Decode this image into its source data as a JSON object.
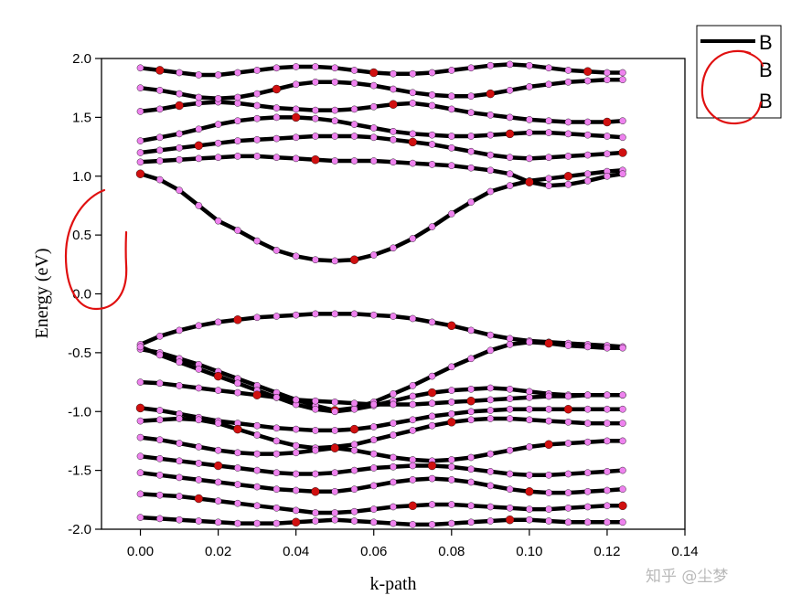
{
  "chart_data": {
    "type": "line",
    "xlabel": "k-path",
    "ylabel": "Energy (eV)",
    "xlim": [
      -0.01,
      0.14
    ],
    "ylim": [
      -2.0,
      2.0
    ],
    "x_ticks": [
      "0.00",
      "0.02",
      "0.04",
      "0.06",
      "0.08",
      "0.10",
      "0.12",
      "0.14"
    ],
    "y_ticks": [
      "2.0",
      "1.5",
      "1.0",
      "0.5",
      "0.0",
      "-0.5",
      "-1.0",
      "-1.5",
      "-2.0"
    ],
    "grid": false,
    "legend_position": "outside-top-right",
    "legend_entries": [
      "B",
      "B",
      "B"
    ],
    "series": [
      {
        "x": [
          0.0,
          0.005,
          0.01,
          0.015,
          0.02,
          0.025,
          0.03,
          0.035,
          0.04,
          0.045,
          0.05,
          0.055,
          0.06,
          0.065,
          0.07,
          0.075,
          0.08,
          0.085,
          0.09,
          0.095,
          0.1,
          0.105,
          0.11,
          0.115,
          0.12,
          0.124
        ],
        "y": [
          1.02,
          0.97,
          0.88,
          0.75,
          0.62,
          0.54,
          0.45,
          0.37,
          0.32,
          0.29,
          0.28,
          0.29,
          0.33,
          0.39,
          0.47,
          0.57,
          0.68,
          0.78,
          0.87,
          0.92,
          0.96,
          0.98,
          1.0,
          1.02,
          1.04,
          1.05
        ]
      },
      {
        "x": [
          0.0,
          0.005,
          0.01,
          0.015,
          0.02,
          0.025,
          0.03,
          0.035,
          0.04,
          0.045,
          0.05,
          0.055,
          0.06,
          0.065,
          0.07,
          0.075,
          0.08,
          0.085,
          0.09,
          0.095,
          0.1,
          0.105,
          0.11,
          0.115,
          0.12,
          0.124
        ],
        "y": [
          -0.43,
          -0.36,
          -0.31,
          -0.27,
          -0.24,
          -0.22,
          -0.2,
          -0.19,
          -0.18,
          -0.17,
          -0.17,
          -0.17,
          -0.18,
          -0.19,
          -0.21,
          -0.24,
          -0.27,
          -0.31,
          -0.35,
          -0.38,
          -0.4,
          -0.41,
          -0.42,
          -0.43,
          -0.44,
          -0.45
        ]
      },
      {
        "x": [
          0.0,
          0.005,
          0.01,
          0.015,
          0.02,
          0.025,
          0.03,
          0.035,
          0.04,
          0.045,
          0.05,
          0.055,
          0.06,
          0.065,
          0.07,
          0.075,
          0.08,
          0.085,
          0.09,
          0.095,
          0.1,
          0.105,
          0.11,
          0.115,
          0.12,
          0.124
        ],
        "y": [
          -0.47,
          -0.5,
          -0.55,
          -0.6,
          -0.66,
          -0.72,
          -0.78,
          -0.84,
          -0.9,
          -0.95,
          -0.99,
          -0.97,
          -0.92,
          -0.85,
          -0.78,
          -0.7,
          -0.62,
          -0.55,
          -0.48,
          -0.43,
          -0.41,
          -0.42,
          -0.44,
          -0.45,
          -0.46,
          -0.46
        ]
      },
      {
        "x": [
          0.0,
          0.005,
          0.01,
          0.015,
          0.02,
          0.025,
          0.03,
          0.035,
          0.04,
          0.045,
          0.05,
          0.055,
          0.06,
          0.065,
          0.07,
          0.075,
          0.08,
          0.085,
          0.09,
          0.095,
          0.1,
          0.105,
          0.11,
          0.115,
          0.12,
          0.124
        ],
        "y": [
          -0.45,
          -0.52,
          -0.58,
          -0.64,
          -0.7,
          -0.76,
          -0.82,
          -0.88,
          -0.94,
          -0.98,
          -1.0,
          -0.98,
          -0.95,
          -0.91,
          -0.87,
          -0.84,
          -0.82,
          -0.81,
          -0.8,
          -0.81,
          -0.83,
          -0.85,
          -0.86,
          -0.86,
          -0.86,
          -0.86
        ]
      },
      {
        "x": [
          0.0,
          0.005,
          0.01,
          0.015,
          0.02,
          0.025,
          0.03,
          0.035,
          0.04,
          0.045,
          0.05,
          0.055,
          0.06,
          0.065,
          0.07,
          0.075,
          0.08,
          0.085,
          0.09,
          0.095,
          0.1,
          0.105,
          0.11,
          0.115,
          0.12,
          0.124
        ],
        "y": [
          1.12,
          1.13,
          1.14,
          1.15,
          1.16,
          1.17,
          1.17,
          1.16,
          1.15,
          1.14,
          1.13,
          1.13,
          1.13,
          1.12,
          1.11,
          1.1,
          1.09,
          1.07,
          1.05,
          1.02,
          0.95,
          0.92,
          0.93,
          0.96,
          1.0,
          1.02
        ]
      },
      {
        "x": [
          0.0,
          0.005,
          0.01,
          0.015,
          0.02,
          0.025,
          0.03,
          0.035,
          0.04,
          0.045,
          0.05,
          0.055,
          0.06,
          0.065,
          0.07,
          0.075,
          0.08,
          0.085,
          0.09,
          0.095,
          0.1,
          0.105,
          0.11,
          0.115,
          0.12,
          0.124
        ],
        "y": [
          1.2,
          1.22,
          1.24,
          1.26,
          1.28,
          1.3,
          1.31,
          1.32,
          1.33,
          1.34,
          1.34,
          1.34,
          1.33,
          1.31,
          1.29,
          1.27,
          1.24,
          1.21,
          1.18,
          1.16,
          1.15,
          1.16,
          1.17,
          1.18,
          1.19,
          1.2
        ]
      },
      {
        "x": [
          0.0,
          0.005,
          0.01,
          0.015,
          0.02,
          0.025,
          0.03,
          0.035,
          0.04,
          0.045,
          0.05,
          0.055,
          0.06,
          0.065,
          0.07,
          0.075,
          0.08,
          0.085,
          0.09,
          0.095,
          0.1,
          0.105,
          0.11,
          0.115,
          0.12,
          0.124
        ],
        "y": [
          1.3,
          1.33,
          1.36,
          1.4,
          1.44,
          1.47,
          1.49,
          1.5,
          1.5,
          1.49,
          1.47,
          1.44,
          1.41,
          1.38,
          1.36,
          1.35,
          1.34,
          1.34,
          1.35,
          1.36,
          1.37,
          1.37,
          1.36,
          1.35,
          1.34,
          1.33
        ]
      },
      {
        "x": [
          0.0,
          0.005,
          0.01,
          0.015,
          0.02,
          0.025,
          0.03,
          0.035,
          0.04,
          0.045,
          0.05,
          0.055,
          0.06,
          0.065,
          0.07,
          0.075,
          0.08,
          0.085,
          0.09,
          0.095,
          0.1,
          0.105,
          0.11,
          0.115,
          0.12,
          0.124
        ],
        "y": [
          1.55,
          1.57,
          1.6,
          1.62,
          1.63,
          1.62,
          1.6,
          1.58,
          1.57,
          1.56,
          1.56,
          1.57,
          1.59,
          1.61,
          1.62,
          1.6,
          1.57,
          1.54,
          1.52,
          1.5,
          1.48,
          1.47,
          1.46,
          1.46,
          1.46,
          1.47
        ]
      },
      {
        "x": [
          0.0,
          0.005,
          0.01,
          0.015,
          0.02,
          0.025,
          0.03,
          0.035,
          0.04,
          0.045,
          0.05,
          0.055,
          0.06,
          0.065,
          0.07,
          0.075,
          0.08,
          0.085,
          0.09,
          0.095,
          0.1,
          0.105,
          0.11,
          0.115,
          0.12,
          0.124
        ],
        "y": [
          1.75,
          1.73,
          1.7,
          1.67,
          1.66,
          1.67,
          1.7,
          1.74,
          1.78,
          1.8,
          1.8,
          1.79,
          1.77,
          1.74,
          1.71,
          1.69,
          1.68,
          1.68,
          1.7,
          1.73,
          1.76,
          1.78,
          1.8,
          1.81,
          1.82,
          1.82
        ]
      },
      {
        "x": [
          0.0,
          0.005,
          0.01,
          0.015,
          0.02,
          0.025,
          0.03,
          0.035,
          0.04,
          0.045,
          0.05,
          0.055,
          0.06,
          0.065,
          0.07,
          0.075,
          0.08,
          0.085,
          0.09,
          0.095,
          0.1,
          0.105,
          0.11,
          0.115,
          0.12,
          0.124
        ],
        "y": [
          1.92,
          1.9,
          1.88,
          1.86,
          1.86,
          1.88,
          1.9,
          1.92,
          1.93,
          1.93,
          1.92,
          1.9,
          1.88,
          1.87,
          1.87,
          1.88,
          1.9,
          1.92,
          1.94,
          1.95,
          1.94,
          1.92,
          1.9,
          1.89,
          1.88,
          1.88
        ]
      },
      {
        "x": [
          0.0,
          0.005,
          0.01,
          0.015,
          0.02,
          0.025,
          0.03,
          0.035,
          0.04,
          0.045,
          0.05,
          0.055,
          0.06,
          0.065,
          0.07,
          0.075,
          0.08,
          0.085,
          0.09,
          0.095,
          0.1,
          0.105,
          0.11,
          0.115,
          0.12,
          0.124
        ],
        "y": [
          -0.75,
          -0.76,
          -0.78,
          -0.8,
          -0.82,
          -0.84,
          -0.86,
          -0.88,
          -0.9,
          -0.91,
          -0.92,
          -0.93,
          -0.94,
          -0.94,
          -0.94,
          -0.93,
          -0.92,
          -0.91,
          -0.9,
          -0.89,
          -0.88,
          -0.87,
          -0.87,
          -0.86,
          -0.86,
          -0.86
        ]
      },
      {
        "x": [
          0.0,
          0.005,
          0.01,
          0.015,
          0.02,
          0.025,
          0.03,
          0.035,
          0.04,
          0.045,
          0.05,
          0.055,
          0.06,
          0.065,
          0.07,
          0.075,
          0.08,
          0.085,
          0.09,
          0.095,
          0.1,
          0.105,
          0.11,
          0.115,
          0.12,
          0.124
        ],
        "y": [
          -0.97,
          -0.99,
          -1.02,
          -1.05,
          -1.08,
          -1.1,
          -1.12,
          -1.14,
          -1.15,
          -1.16,
          -1.16,
          -1.15,
          -1.13,
          -1.1,
          -1.07,
          -1.04,
          -1.02,
          -1.0,
          -0.99,
          -0.98,
          -0.98,
          -0.98,
          -0.98,
          -0.98,
          -0.98,
          -0.98
        ]
      },
      {
        "x": [
          0.0,
          0.005,
          0.01,
          0.015,
          0.02,
          0.025,
          0.03,
          0.035,
          0.04,
          0.045,
          0.05,
          0.055,
          0.06,
          0.065,
          0.07,
          0.075,
          0.08,
          0.085,
          0.09,
          0.095,
          0.1,
          0.105,
          0.11,
          0.115,
          0.12,
          0.124
        ],
        "y": [
          -1.08,
          -1.07,
          -1.06,
          -1.07,
          -1.1,
          -1.15,
          -1.2,
          -1.25,
          -1.29,
          -1.31,
          -1.3,
          -1.28,
          -1.24,
          -1.2,
          -1.16,
          -1.12,
          -1.09,
          -1.07,
          -1.06,
          -1.06,
          -1.07,
          -1.08,
          -1.09,
          -1.1,
          -1.1,
          -1.1
        ]
      },
      {
        "x": [
          0.0,
          0.005,
          0.01,
          0.015,
          0.02,
          0.025,
          0.03,
          0.035,
          0.04,
          0.045,
          0.05,
          0.055,
          0.06,
          0.065,
          0.07,
          0.075,
          0.08,
          0.085,
          0.09,
          0.095,
          0.1,
          0.105,
          0.11,
          0.115,
          0.12,
          0.124
        ],
        "y": [
          -1.22,
          -1.24,
          -1.27,
          -1.3,
          -1.33,
          -1.35,
          -1.36,
          -1.36,
          -1.35,
          -1.33,
          -1.31,
          -1.33,
          -1.36,
          -1.39,
          -1.41,
          -1.42,
          -1.41,
          -1.39,
          -1.36,
          -1.33,
          -1.3,
          -1.28,
          -1.27,
          -1.26,
          -1.25,
          -1.25
        ]
      },
      {
        "x": [
          0.0,
          0.005,
          0.01,
          0.015,
          0.02,
          0.025,
          0.03,
          0.035,
          0.04,
          0.045,
          0.05,
          0.055,
          0.06,
          0.065,
          0.07,
          0.075,
          0.08,
          0.085,
          0.09,
          0.095,
          0.1,
          0.105,
          0.11,
          0.115,
          0.12,
          0.124
        ],
        "y": [
          -1.38,
          -1.4,
          -1.42,
          -1.44,
          -1.46,
          -1.48,
          -1.5,
          -1.52,
          -1.53,
          -1.53,
          -1.52,
          -1.5,
          -1.48,
          -1.47,
          -1.46,
          -1.46,
          -1.47,
          -1.49,
          -1.51,
          -1.53,
          -1.54,
          -1.54,
          -1.53,
          -1.52,
          -1.51,
          -1.5
        ]
      },
      {
        "x": [
          0.0,
          0.005,
          0.01,
          0.015,
          0.02,
          0.025,
          0.03,
          0.035,
          0.04,
          0.045,
          0.05,
          0.055,
          0.06,
          0.065,
          0.07,
          0.075,
          0.08,
          0.085,
          0.09,
          0.095,
          0.1,
          0.105,
          0.11,
          0.115,
          0.12,
          0.124
        ],
        "y": [
          -1.52,
          -1.54,
          -1.56,
          -1.58,
          -1.6,
          -1.62,
          -1.64,
          -1.66,
          -1.67,
          -1.68,
          -1.68,
          -1.66,
          -1.63,
          -1.6,
          -1.58,
          -1.57,
          -1.58,
          -1.6,
          -1.63,
          -1.66,
          -1.68,
          -1.69,
          -1.69,
          -1.68,
          -1.67,
          -1.66
        ]
      },
      {
        "x": [
          0.0,
          0.005,
          0.01,
          0.015,
          0.02,
          0.025,
          0.03,
          0.035,
          0.04,
          0.045,
          0.05,
          0.055,
          0.06,
          0.065,
          0.07,
          0.075,
          0.08,
          0.085,
          0.09,
          0.095,
          0.1,
          0.105,
          0.11,
          0.115,
          0.12,
          0.124
        ],
        "y": [
          -1.7,
          -1.71,
          -1.72,
          -1.74,
          -1.76,
          -1.78,
          -1.8,
          -1.82,
          -1.84,
          -1.86,
          -1.86,
          -1.85,
          -1.83,
          -1.81,
          -1.8,
          -1.79,
          -1.79,
          -1.8,
          -1.81,
          -1.82,
          -1.83,
          -1.83,
          -1.82,
          -1.81,
          -1.8,
          -1.8
        ]
      },
      {
        "x": [
          0.0,
          0.005,
          0.01,
          0.015,
          0.02,
          0.025,
          0.03,
          0.035,
          0.04,
          0.045,
          0.05,
          0.055,
          0.06,
          0.065,
          0.07,
          0.075,
          0.08,
          0.085,
          0.09,
          0.095,
          0.1,
          0.105,
          0.11,
          0.115,
          0.12,
          0.124
        ],
        "y": [
          -1.9,
          -1.91,
          -1.92,
          -1.93,
          -1.94,
          -1.95,
          -1.95,
          -1.95,
          -1.94,
          -1.93,
          -1.92,
          -1.93,
          -1.94,
          -1.95,
          -1.96,
          -1.96,
          -1.95,
          -1.94,
          -1.93,
          -1.92,
          -1.92,
          -1.93,
          -1.94,
          -1.94,
          -1.94,
          -1.94
        ]
      }
    ],
    "point_colors": {
      "line": "#000000",
      "marker_pink": "#ee82ee",
      "marker_red": "#d01010"
    }
  },
  "watermark": "知乎 @尘梦",
  "annotation_color": "#e01010"
}
